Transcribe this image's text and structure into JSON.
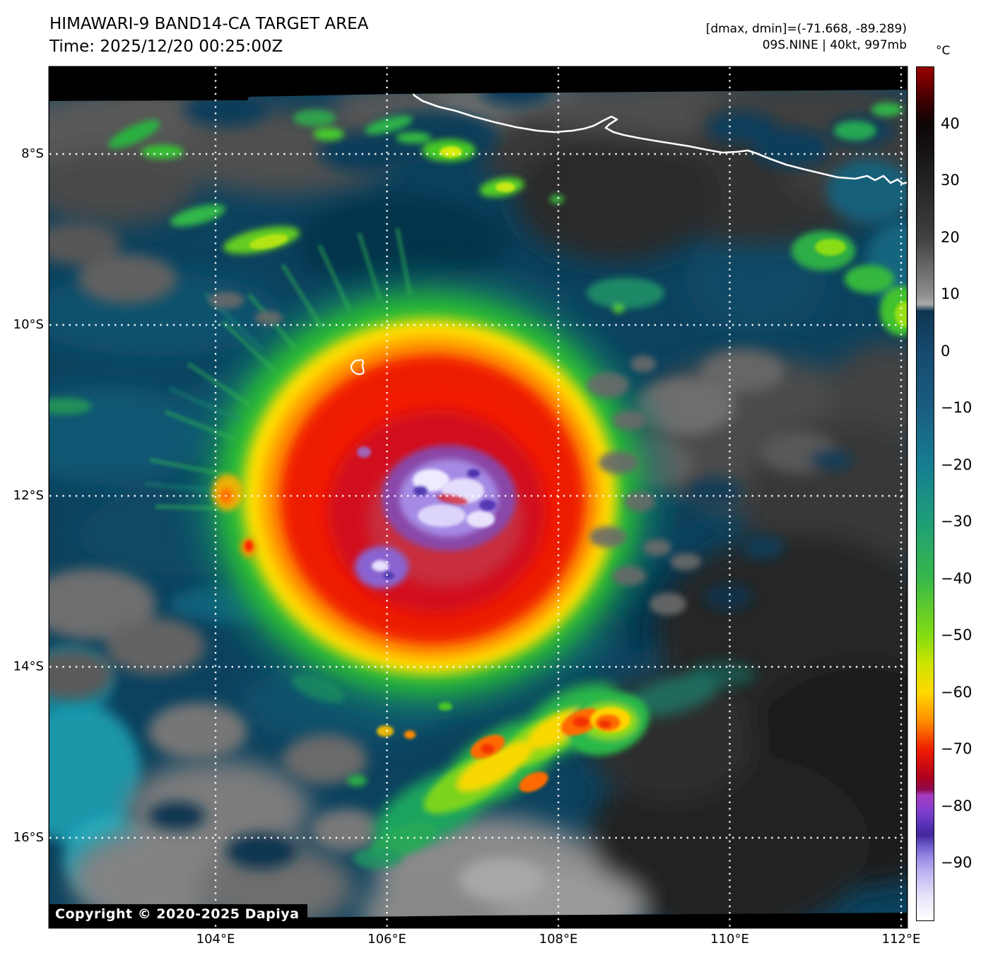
{
  "header": {
    "title": "HIMAWARI-9 BAND14-CA TARGET AREA",
    "time": "Time: 2025/12/20 00:25:00Z",
    "dmax_dmin": "[dmax, dmin]=(-71.668, -89.289)",
    "storm_info": "09S.NINE | 40kt, 997mb"
  },
  "map": {
    "copyright": "Copyright © 2020-2025 Dapiya",
    "lat_ticks": [
      {
        "label": "8°S",
        "deg": 8
      },
      {
        "label": "10°S",
        "deg": 10
      },
      {
        "label": "12°S",
        "deg": 12
      },
      {
        "label": "14°S",
        "deg": 14
      },
      {
        "label": "16°S",
        "deg": 16
      }
    ],
    "lon_ticks": [
      {
        "label": "104°E",
        "deg": 104
      },
      {
        "label": "106°E",
        "deg": 106
      },
      {
        "label": "108°E",
        "deg": 108
      },
      {
        "label": "110°E",
        "deg": 110
      },
      {
        "label": "112°E",
        "deg": 112
      }
    ]
  },
  "colorbar": {
    "unit": "°C",
    "top_value": 50,
    "bottom_value": -100,
    "ticks": [
      {
        "label": "40",
        "value": 40
      },
      {
        "label": "30",
        "value": 30
      },
      {
        "label": "20",
        "value": 20
      },
      {
        "label": "10",
        "value": 10
      },
      {
        "label": "0",
        "value": 0
      },
      {
        "label": "−10",
        "value": -10
      },
      {
        "label": "−20",
        "value": -20
      },
      {
        "label": "−30",
        "value": -30
      },
      {
        "label": "−40",
        "value": -40
      },
      {
        "label": "−50",
        "value": -50
      },
      {
        "label": "−60",
        "value": -60
      },
      {
        "label": "−70",
        "value": -70
      },
      {
        "label": "−80",
        "value": -80
      },
      {
        "label": "−90",
        "value": -90
      }
    ],
    "stops": [
      {
        "at": 0,
        "color": "#960000"
      },
      {
        "at": 1.5,
        "color": "#7a0000"
      },
      {
        "at": 4,
        "color": "#3c0000"
      },
      {
        "at": 6.7,
        "color": "#0d0505"
      },
      {
        "at": 13.3,
        "color": "#222222"
      },
      {
        "at": 20,
        "color": "#404040"
      },
      {
        "at": 26.7,
        "color": "#8e8e8e"
      },
      {
        "at": 27.8,
        "color": "#aaaaaa"
      },
      {
        "at": 28.6,
        "color": "#0f3550"
      },
      {
        "at": 33.3,
        "color": "#154a6e"
      },
      {
        "at": 40,
        "color": "#1a5c82"
      },
      {
        "at": 46.7,
        "color": "#157e92"
      },
      {
        "at": 53.3,
        "color": "#1f9e78"
      },
      {
        "at": 60,
        "color": "#38b84a"
      },
      {
        "at": 66.7,
        "color": "#86dc10"
      },
      {
        "at": 70,
        "color": "#cfe400"
      },
      {
        "at": 73.3,
        "color": "#ffd800"
      },
      {
        "at": 76.7,
        "color": "#ff8c00"
      },
      {
        "at": 80,
        "color": "#ef1c00"
      },
      {
        "at": 83.3,
        "color": "#ad0020"
      },
      {
        "at": 84.7,
        "color": "#8f0a50"
      },
      {
        "at": 85.3,
        "color": "#a73cc0"
      },
      {
        "at": 87.3,
        "color": "#7e3fd0"
      },
      {
        "at": 89,
        "color": "#5230b4"
      },
      {
        "at": 90,
        "color": "#44289c"
      },
      {
        "at": 91.3,
        "color": "#6f5ecc"
      },
      {
        "at": 92.7,
        "color": "#9b8ce6"
      },
      {
        "at": 94.7,
        "color": "#c3b9f2"
      },
      {
        "at": 97.3,
        "color": "#e9e5fb"
      },
      {
        "at": 100,
        "color": "#ffffff"
      }
    ]
  },
  "chart_data": {
    "type": "heatmap",
    "title": "HIMAWARI-9 BAND14-CA TARGET AREA",
    "time_utc": "2025/12/20 00:25:00Z",
    "lon_range_deg_e": [
      102.1,
      112.1
    ],
    "lat_range_deg_s": [
      7.0,
      17.1
    ],
    "colorbar_unit": "°C",
    "colorbar_range": [
      -100,
      50
    ],
    "dmax_c": -71.668,
    "dmin_c": -89.289,
    "storm": {
      "id": "09S.NINE",
      "wind_kt": 40,
      "pressure_mb": 997
    },
    "features": [
      "tropical cyclone cold cloud shield centered near 12S 106.6E, red core (-65 to -75C) with violet/white overshooting tops (-80 to -92C)",
      "green/yellow convective band arc southeast of cyclone near 14-15.5S 106-108E",
      "Java south coastline crossing top of frame with gray land clouds",
      "dark gray subsided cloud field east of cyclone (109-112E)",
      "teal ocean background (~0 to -20C) with scattered gray low clouds"
    ]
  }
}
